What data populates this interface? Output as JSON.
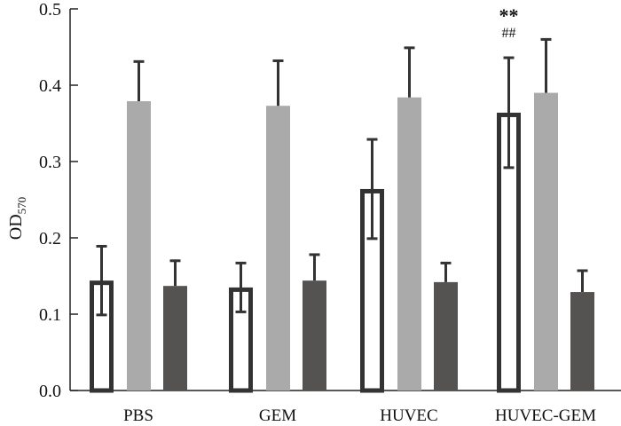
{
  "chart_data": {
    "type": "bar",
    "title": "",
    "xlabel": "",
    "ylabel": "OD",
    "ylabel_subscript": "570",
    "ylim": [
      0,
      0.5
    ],
    "yticks": [
      "0.0",
      "0.1",
      "0.2",
      "0.3",
      "0.4",
      "0.5"
    ],
    "grid": false,
    "categories": [
      "PBS",
      "GEM",
      "HUVEC",
      "HUVEC-GEM"
    ],
    "series": [
      {
        "style": "hollow",
        "color": "#333333",
        "values": [
          0.144,
          0.135,
          0.264,
          0.364
        ],
        "error": [
          0.045,
          0.032,
          0.065,
          0.072
        ],
        "error_direction": "both"
      },
      {
        "style": "filled",
        "color": "#aaaaaa",
        "values": [
          0.379,
          0.373,
          0.384,
          0.39
        ],
        "error": [
          0.052,
          0.059,
          0.065,
          0.07
        ],
        "error_direction": "up"
      },
      {
        "style": "filled",
        "color": "#555252",
        "values": [
          0.137,
          0.144,
          0.142,
          0.129
        ],
        "error": [
          0.033,
          0.034,
          0.025,
          0.028
        ],
        "error_direction": "up"
      }
    ],
    "annotations": [
      {
        "category": "HUVEC-GEM",
        "series": 0,
        "lines": [
          "**",
          "##"
        ]
      }
    ]
  }
}
